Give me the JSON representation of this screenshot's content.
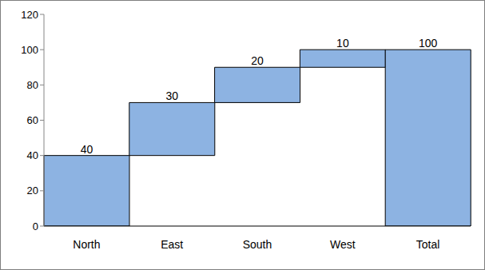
{
  "chart_data": {
    "type": "waterfall",
    "categories": [
      "North",
      "East",
      "South",
      "West",
      "Total"
    ],
    "values": [
      40,
      30,
      20,
      10,
      100
    ],
    "color": "#8db3e2",
    "ylim": [
      0,
      120
    ],
    "yticks": [
      0,
      20,
      40,
      60,
      80,
      100,
      120
    ],
    "grid": false,
    "data_labels": true
  }
}
